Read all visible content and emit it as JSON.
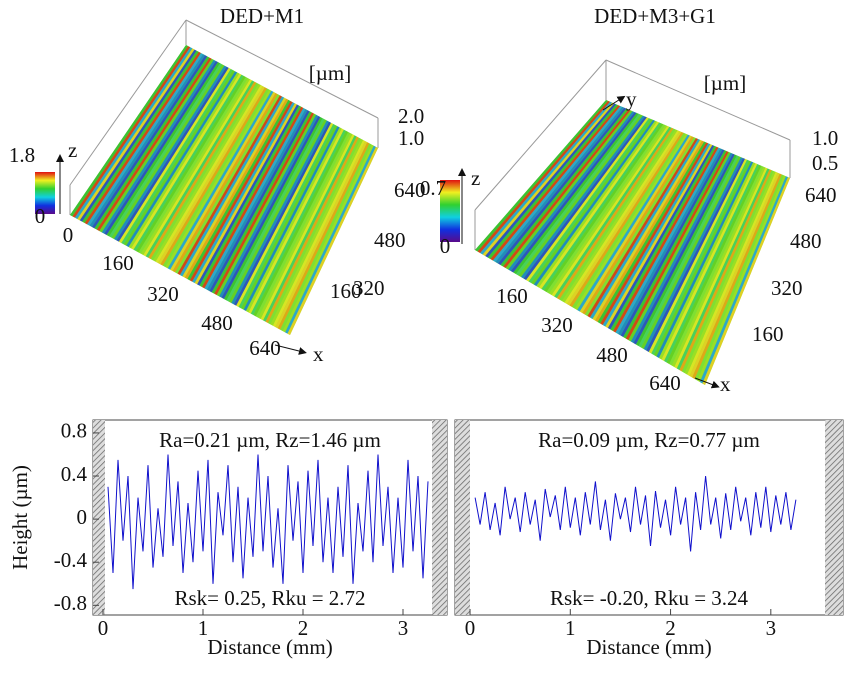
{
  "panels": [
    {
      "title": "DED+M1",
      "unit": "[µm]",
      "z_label": "z",
      "x_label": "x",
      "colorbar_labels": [
        "1.8",
        "0"
      ],
      "z_ticks": [
        "2.0",
        "1.0"
      ],
      "x_ticks": [
        "0",
        "160",
        "320",
        "480",
        "640"
      ],
      "y_ticks": [
        "640",
        "480",
        "320",
        "160"
      ]
    },
    {
      "title": "DED+M3+G1",
      "unit": "[µm]",
      "z_label": "z",
      "x_label": "x",
      "y_label": "y",
      "colorbar_labels": [
        "0.7",
        "0"
      ],
      "z_ticks": [
        "1.0",
        "0.5"
      ],
      "x_ticks": [
        "160",
        "320",
        "480",
        "640"
      ],
      "y_ticks": [
        "640",
        "480",
        "320",
        "160"
      ]
    }
  ],
  "chart_data": [
    {
      "type": "line",
      "y_label": "Height (µm)",
      "x_label": "Distance (mm)",
      "annotations": [
        "Ra=0.21 µm, Rz=1.46 µm",
        "Rsk= 0.25, Rku = 2.72"
      ],
      "x": [
        0.05,
        0.1,
        0.15,
        0.2,
        0.25,
        0.3,
        0.35,
        0.4,
        0.45,
        0.5,
        0.55,
        0.6,
        0.65,
        0.7,
        0.75,
        0.8,
        0.85,
        0.9,
        0.95,
        1,
        1.05,
        1.1,
        1.15,
        1.2,
        1.25,
        1.3,
        1.35,
        1.4,
        1.45,
        1.5,
        1.55,
        1.6,
        1.65,
        1.7,
        1.75,
        1.8,
        1.85,
        1.9,
        1.95,
        2,
        2.05,
        2.1,
        2.15,
        2.2,
        2.25,
        2.3,
        2.35,
        2.4,
        2.45,
        2.5,
        2.55,
        2.6,
        2.65,
        2.7,
        2.75,
        2.8,
        2.85,
        2.9,
        2.95,
        3,
        3.05,
        3.1,
        3.15,
        3.2,
        3.25
      ],
      "series": [
        {
          "color": "#1010cc",
          "values": [
            0.3,
            -0.5,
            0.55,
            -0.2,
            0.4,
            -0.65,
            0.2,
            -0.3,
            0.5,
            -0.45,
            0.1,
            -0.35,
            0.6,
            -0.25,
            0.35,
            -0.5,
            0.15,
            -0.4,
            0.45,
            -0.3,
            0.55,
            -0.6,
            0.25,
            -0.15,
            0.5,
            -0.4,
            0.3,
            -0.55,
            0.2,
            -0.35,
            0.6,
            -0.3,
            0.4,
            -0.45,
            0.1,
            -0.6,
            0.5,
            -0.2,
            0.35,
            -0.5,
            0.45,
            -0.25,
            0.55,
            -0.4,
            0.2,
            -0.5,
            0.3,
            -0.35,
            0.5,
            -0.6,
            0.15,
            -0.3,
            0.45,
            -0.4,
            0.6,
            -0.25,
            0.3,
            -0.5,
            0.2,
            -0.45,
            0.55,
            -0.3,
            0.4,
            -0.55,
            0.35
          ]
        }
      ],
      "xlim": [
        -0.1,
        3.44
      ],
      "ylim": [
        -0.89,
        0.92
      ],
      "xticks": [
        0,
        1,
        2,
        3
      ],
      "yticks": [
        0.8,
        0.4,
        0,
        -0.4,
        -0.8
      ]
    },
    {
      "type": "line",
      "x_label": "Distance (mm)",
      "annotations": [
        "Ra=0.09 µm, Rz=0.77 µm",
        "Rsk= -0.20, Rku = 3.24"
      ],
      "x": [
        0.05,
        0.1,
        0.15,
        0.2,
        0.25,
        0.3,
        0.35,
        0.4,
        0.45,
        0.5,
        0.55,
        0.6,
        0.65,
        0.7,
        0.75,
        0.8,
        0.85,
        0.9,
        0.95,
        1,
        1.05,
        1.1,
        1.15,
        1.2,
        1.25,
        1.3,
        1.35,
        1.4,
        1.45,
        1.5,
        1.55,
        1.6,
        1.65,
        1.7,
        1.75,
        1.8,
        1.85,
        1.9,
        1.95,
        2,
        2.05,
        2.1,
        2.15,
        2.2,
        2.25,
        2.3,
        2.35,
        2.4,
        2.45,
        2.5,
        2.55,
        2.6,
        2.65,
        2.7,
        2.75,
        2.8,
        2.85,
        2.9,
        2.95,
        3,
        3.05,
        3.1,
        3.15,
        3.2,
        3.25
      ],
      "series": [
        {
          "color": "#1010cc",
          "values": [
            0.2,
            -0.05,
            0.25,
            -0.1,
            0.15,
            -0.15,
            0.3,
            0,
            0.2,
            -0.12,
            0.25,
            -0.05,
            0.18,
            -0.2,
            0.28,
            0.02,
            0.22,
            -0.1,
            0.3,
            -0.08,
            0.2,
            -0.15,
            0.25,
            -0.05,
            0.35,
            -0.1,
            0.18,
            -0.2,
            0.24,
            0,
            0.2,
            -0.12,
            0.3,
            -0.05,
            0.22,
            -0.25,
            0.26,
            -0.08,
            0.18,
            -0.15,
            0.3,
            -0.05,
            0.2,
            -0.3,
            0.25,
            -0.1,
            0.4,
            -0.05,
            0.2,
            -0.18,
            0.24,
            -0.1,
            0.3,
            -0.02,
            0.2,
            -0.15,
            0.25,
            -0.08,
            0.3,
            -0.12,
            0.22,
            -0.05,
            0.25,
            -0.1,
            0.18
          ]
        }
      ],
      "xlim": [
        -0.15,
        3.72
      ],
      "ylim": [
        -0.89,
        0.92
      ],
      "xticks": [
        0,
        1,
        2,
        3
      ]
    }
  ]
}
